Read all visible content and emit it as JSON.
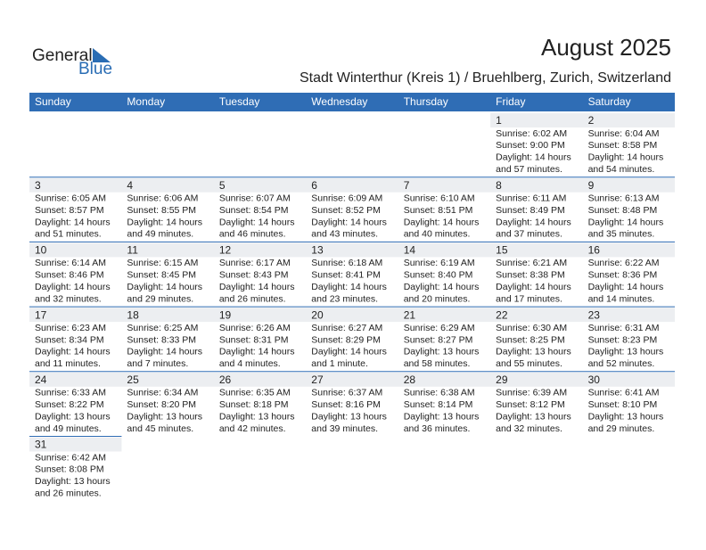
{
  "logo": {
    "word1": "General",
    "word2": "Blue"
  },
  "header": {
    "title": "August 2025",
    "subtitle": "Stadt Winterthur (Kreis 1) / Bruehlberg, Zurich, Switzerland"
  },
  "weekdays": [
    "Sunday",
    "Monday",
    "Tuesday",
    "Wednesday",
    "Thursday",
    "Friday",
    "Saturday"
  ],
  "weeks": [
    [
      null,
      null,
      null,
      null,
      null,
      {
        "day": 1,
        "lines": [
          "Sunrise: 6:02 AM",
          "Sunset: 9:00 PM",
          "Daylight: 14 hours",
          "and 57 minutes."
        ]
      },
      {
        "day": 2,
        "lines": [
          "Sunrise: 6:04 AM",
          "Sunset: 8:58 PM",
          "Daylight: 14 hours",
          "and 54 minutes."
        ]
      }
    ],
    [
      {
        "day": 3,
        "lines": [
          "Sunrise: 6:05 AM",
          "Sunset: 8:57 PM",
          "Daylight: 14 hours",
          "and 51 minutes."
        ]
      },
      {
        "day": 4,
        "lines": [
          "Sunrise: 6:06 AM",
          "Sunset: 8:55 PM",
          "Daylight: 14 hours",
          "and 49 minutes."
        ]
      },
      {
        "day": 5,
        "lines": [
          "Sunrise: 6:07 AM",
          "Sunset: 8:54 PM",
          "Daylight: 14 hours",
          "and 46 minutes."
        ]
      },
      {
        "day": 6,
        "lines": [
          "Sunrise: 6:09 AM",
          "Sunset: 8:52 PM",
          "Daylight: 14 hours",
          "and 43 minutes."
        ]
      },
      {
        "day": 7,
        "lines": [
          "Sunrise: 6:10 AM",
          "Sunset: 8:51 PM",
          "Daylight: 14 hours",
          "and 40 minutes."
        ]
      },
      {
        "day": 8,
        "lines": [
          "Sunrise: 6:11 AM",
          "Sunset: 8:49 PM",
          "Daylight: 14 hours",
          "and 37 minutes."
        ]
      },
      {
        "day": 9,
        "lines": [
          "Sunrise: 6:13 AM",
          "Sunset: 8:48 PM",
          "Daylight: 14 hours",
          "and 35 minutes."
        ]
      }
    ],
    [
      {
        "day": 10,
        "lines": [
          "Sunrise: 6:14 AM",
          "Sunset: 8:46 PM",
          "Daylight: 14 hours",
          "and 32 minutes."
        ]
      },
      {
        "day": 11,
        "lines": [
          "Sunrise: 6:15 AM",
          "Sunset: 8:45 PM",
          "Daylight: 14 hours",
          "and 29 minutes."
        ]
      },
      {
        "day": 12,
        "lines": [
          "Sunrise: 6:17 AM",
          "Sunset: 8:43 PM",
          "Daylight: 14 hours",
          "and 26 minutes."
        ]
      },
      {
        "day": 13,
        "lines": [
          "Sunrise: 6:18 AM",
          "Sunset: 8:41 PM",
          "Daylight: 14 hours",
          "and 23 minutes."
        ]
      },
      {
        "day": 14,
        "lines": [
          "Sunrise: 6:19 AM",
          "Sunset: 8:40 PM",
          "Daylight: 14 hours",
          "and 20 minutes."
        ]
      },
      {
        "day": 15,
        "lines": [
          "Sunrise: 6:21 AM",
          "Sunset: 8:38 PM",
          "Daylight: 14 hours",
          "and 17 minutes."
        ]
      },
      {
        "day": 16,
        "lines": [
          "Sunrise: 6:22 AM",
          "Sunset: 8:36 PM",
          "Daylight: 14 hours",
          "and 14 minutes."
        ]
      }
    ],
    [
      {
        "day": 17,
        "lines": [
          "Sunrise: 6:23 AM",
          "Sunset: 8:34 PM",
          "Daylight: 14 hours",
          "and 11 minutes."
        ]
      },
      {
        "day": 18,
        "lines": [
          "Sunrise: 6:25 AM",
          "Sunset: 8:33 PM",
          "Daylight: 14 hours",
          "and 7 minutes."
        ]
      },
      {
        "day": 19,
        "lines": [
          "Sunrise: 6:26 AM",
          "Sunset: 8:31 PM",
          "Daylight: 14 hours",
          "and 4 minutes."
        ]
      },
      {
        "day": 20,
        "lines": [
          "Sunrise: 6:27 AM",
          "Sunset: 8:29 PM",
          "Daylight: 14 hours",
          "and 1 minute."
        ]
      },
      {
        "day": 21,
        "lines": [
          "Sunrise: 6:29 AM",
          "Sunset: 8:27 PM",
          "Daylight: 13 hours",
          "and 58 minutes."
        ]
      },
      {
        "day": 22,
        "lines": [
          "Sunrise: 6:30 AM",
          "Sunset: 8:25 PM",
          "Daylight: 13 hours",
          "and 55 minutes."
        ]
      },
      {
        "day": 23,
        "lines": [
          "Sunrise: 6:31 AM",
          "Sunset: 8:23 PM",
          "Daylight: 13 hours",
          "and 52 minutes."
        ]
      }
    ],
    [
      {
        "day": 24,
        "lines": [
          "Sunrise: 6:33 AM",
          "Sunset: 8:22 PM",
          "Daylight: 13 hours",
          "and 49 minutes."
        ]
      },
      {
        "day": 25,
        "lines": [
          "Sunrise: 6:34 AM",
          "Sunset: 8:20 PM",
          "Daylight: 13 hours",
          "and 45 minutes."
        ]
      },
      {
        "day": 26,
        "lines": [
          "Sunrise: 6:35 AM",
          "Sunset: 8:18 PM",
          "Daylight: 13 hours",
          "and 42 minutes."
        ]
      },
      {
        "day": 27,
        "lines": [
          "Sunrise: 6:37 AM",
          "Sunset: 8:16 PM",
          "Daylight: 13 hours",
          "and 39 minutes."
        ]
      },
      {
        "day": 28,
        "lines": [
          "Sunrise: 6:38 AM",
          "Sunset: 8:14 PM",
          "Daylight: 13 hours",
          "and 36 minutes."
        ]
      },
      {
        "day": 29,
        "lines": [
          "Sunrise: 6:39 AM",
          "Sunset: 8:12 PM",
          "Daylight: 13 hours",
          "and 32 minutes."
        ]
      },
      {
        "day": 30,
        "lines": [
          "Sunrise: 6:41 AM",
          "Sunset: 8:10 PM",
          "Daylight: 13 hours",
          "and 29 minutes."
        ]
      }
    ],
    [
      {
        "day": 31,
        "lines": [
          "Sunrise: 6:42 AM",
          "Sunset: 8:08 PM",
          "Daylight: 13 hours",
          "and 26 minutes."
        ]
      },
      null,
      null,
      null,
      null,
      null,
      null
    ]
  ]
}
